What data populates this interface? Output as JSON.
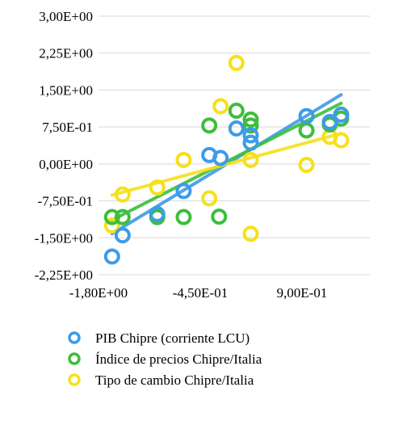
{
  "chart_data": {
    "type": "scatter",
    "title": "",
    "xlabel": "",
    "ylabel": "",
    "xlim": [
      -1.8,
      1.8
    ],
    "ylim": [
      -2.25,
      3.0
    ],
    "x_ticks": [
      {
        "value": -1.8,
        "label": "-1,80E+00"
      },
      {
        "value": -0.45,
        "label": "-4,50E-01"
      },
      {
        "value": 0.9,
        "label": "9,00E-01"
      }
    ],
    "y_ticks": [
      {
        "value": 3.0,
        "label": "3,00E+00"
      },
      {
        "value": 2.25,
        "label": "2,25E+00"
      },
      {
        "value": 1.5,
        "label": "1,50E+00"
      },
      {
        "value": 0.75,
        "label": "7,50E-01"
      },
      {
        "value": 0.0,
        "label": "0,00E+00"
      },
      {
        "value": -0.75,
        "label": "-7,50E-01"
      },
      {
        "value": -1.5,
        "label": "-1,50E+00"
      },
      {
        "value": -2.25,
        "label": "-2,25E+00"
      }
    ],
    "grid": true,
    "legend_position": "bottom",
    "series": [
      {
        "name": "PIB Chipre (corriente LCU)",
        "color": "#3D9BE9",
        "trendline": true,
        "points": [
          {
            "x": -1.62,
            "y": -1.88
          },
          {
            "x": -1.48,
            "y": -1.45
          },
          {
            "x": -1.02,
            "y": -1.02
          },
          {
            "x": -0.67,
            "y": -0.55
          },
          {
            "x": -0.33,
            "y": 0.18
          },
          {
            "x": -0.18,
            "y": 0.12
          },
          {
            "x": 0.03,
            "y": 0.72
          },
          {
            "x": 0.22,
            "y": 0.58
          },
          {
            "x": 0.22,
            "y": 0.43
          },
          {
            "x": 0.96,
            "y": 0.97
          },
          {
            "x": 1.27,
            "y": 0.85
          },
          {
            "x": 1.42,
            "y": 1.0
          }
        ]
      },
      {
        "name": "Índice de precios Chipre/Italia",
        "color": "#3DBE3C",
        "trendline": true,
        "points": [
          {
            "x": -1.62,
            "y": -1.08
          },
          {
            "x": -1.48,
            "y": -1.08
          },
          {
            "x": -1.02,
            "y": -1.08
          },
          {
            "x": -0.67,
            "y": -1.08
          },
          {
            "x": -0.33,
            "y": 0.78
          },
          {
            "x": -0.2,
            "y": -1.07
          },
          {
            "x": 0.03,
            "y": 1.08
          },
          {
            "x": 0.22,
            "y": 0.9
          },
          {
            "x": 0.22,
            "y": 0.78
          },
          {
            "x": 0.96,
            "y": 0.68
          },
          {
            "x": 1.27,
            "y": 0.8
          },
          {
            "x": 1.42,
            "y": 0.92
          }
        ]
      },
      {
        "name": "Tipo de cambio Chipre/Italia",
        "color": "#F5E11A",
        "trendline": true,
        "points": [
          {
            "x": -1.62,
            "y": -1.25
          },
          {
            "x": -1.48,
            "y": -0.62
          },
          {
            "x": -1.02,
            "y": -0.48
          },
          {
            "x": -0.67,
            "y": 0.08
          },
          {
            "x": -0.33,
            "y": -0.7
          },
          {
            "x": -0.18,
            "y": 1.17
          },
          {
            "x": 0.03,
            "y": 2.05
          },
          {
            "x": 0.22,
            "y": 0.08
          },
          {
            "x": 0.22,
            "y": -1.42
          },
          {
            "x": 0.96,
            "y": -0.02
          },
          {
            "x": 1.27,
            "y": 0.55
          },
          {
            "x": 1.42,
            "y": 0.48
          }
        ]
      }
    ]
  }
}
